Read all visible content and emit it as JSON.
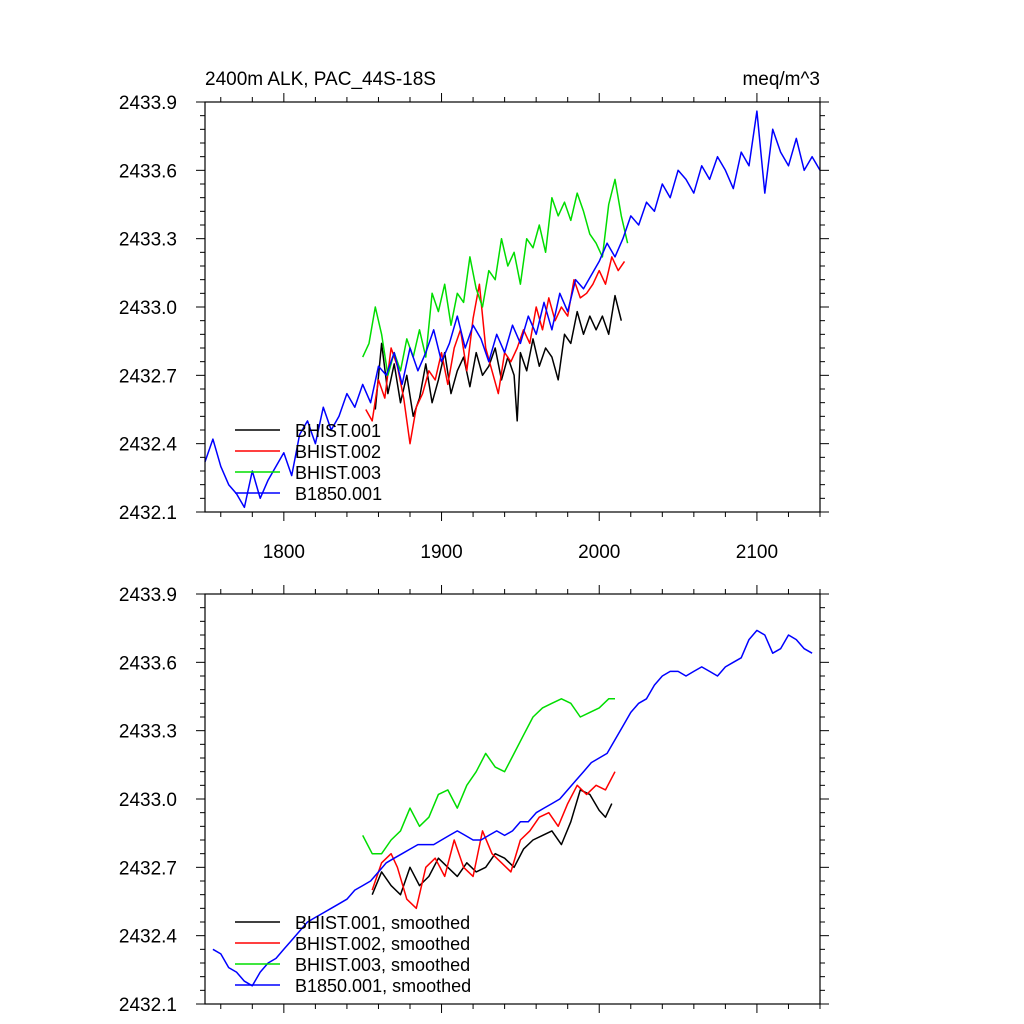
{
  "chart_data": [
    {
      "type": "line",
      "title": "2400m ALK, PAC_44S-18S",
      "units": "meq/m^3",
      "xlim": [
        1750,
        2140
      ],
      "ylim": [
        2432.1,
        2433.9
      ],
      "xticks": [
        1800,
        1900,
        2000,
        2100
      ],
      "xtick_labels": [
        "1800",
        "1900",
        "2000",
        "2100"
      ],
      "yticks": [
        2432.1,
        2432.4,
        2432.7,
        2433.0,
        2433.3,
        2433.6,
        2433.9
      ],
      "ytick_labels": [
        "2432.1",
        "2432.4",
        "2432.7",
        "2433.0",
        "2433.3",
        "2433.6",
        "2433.9"
      ],
      "legend_location": "bottom-left",
      "series": [
        {
          "name": "BHIST.001",
          "color": "#000000",
          "x": [
            1858,
            1862,
            1866,
            1870,
            1874,
            1878,
            1882,
            1886,
            1890,
            1894,
            1898,
            1902,
            1906,
            1910,
            1914,
            1918,
            1922,
            1926,
            1930,
            1934,
            1938,
            1942,
            1946,
            1948,
            1950,
            1954,
            1958,
            1962,
            1966,
            1970,
            1974,
            1978,
            1982,
            1986,
            1990,
            1994,
            1998,
            2002,
            2006,
            2010,
            2014
          ],
          "values": [
            2432.55,
            2432.84,
            2432.62,
            2432.75,
            2432.58,
            2432.7,
            2432.52,
            2432.6,
            2432.75,
            2432.58,
            2432.68,
            2432.8,
            2432.62,
            2432.72,
            2432.78,
            2432.65,
            2432.8,
            2432.7,
            2432.74,
            2432.82,
            2432.68,
            2432.78,
            2432.7,
            2432.5,
            2432.8,
            2432.72,
            2432.86,
            2432.74,
            2432.82,
            2432.78,
            2432.68,
            2432.88,
            2432.84,
            2432.98,
            2432.88,
            2432.96,
            2432.9,
            2432.96,
            2432.88,
            2433.05,
            2432.94
          ]
        },
        {
          "name": "BHIST.002",
          "color": "#ff0000",
          "x": [
            1852,
            1856,
            1860,
            1864,
            1868,
            1872,
            1876,
            1880,
            1884,
            1888,
            1892,
            1896,
            1900,
            1904,
            1908,
            1912,
            1916,
            1920,
            1924,
            1928,
            1932,
            1936,
            1940,
            1944,
            1948,
            1952,
            1956,
            1960,
            1964,
            1968,
            1972,
            1976,
            1980,
            1984,
            1988,
            1992,
            1996,
            2000,
            2004,
            2008,
            2012,
            2016
          ],
          "values": [
            2432.55,
            2432.5,
            2432.68,
            2432.6,
            2432.82,
            2432.74,
            2432.6,
            2432.4,
            2432.56,
            2432.62,
            2432.72,
            2432.68,
            2432.8,
            2432.66,
            2432.82,
            2432.9,
            2432.72,
            2432.95,
            2433.1,
            2432.82,
            2432.72,
            2432.62,
            2432.8,
            2432.76,
            2432.82,
            2432.9,
            2432.84,
            2433.0,
            2432.9,
            2433.04,
            2432.94,
            2433.0,
            2432.96,
            2433.12,
            2433.04,
            2433.06,
            2433.1,
            2433.16,
            2433.1,
            2433.22,
            2433.16,
            2433.2
          ]
        },
        {
          "name": "BHIST.003",
          "color": "#00dd00",
          "x": [
            1850,
            1854,
            1858,
            1862,
            1866,
            1870,
            1874,
            1878,
            1882,
            1886,
            1890,
            1894,
            1898,
            1902,
            1906,
            1910,
            1914,
            1918,
            1922,
            1926,
            1930,
            1934,
            1938,
            1942,
            1946,
            1950,
            1954,
            1958,
            1962,
            1966,
            1970,
            1974,
            1978,
            1982,
            1986,
            1990,
            1994,
            1998,
            2002,
            2006,
            2010,
            2014,
            2018
          ],
          "values": [
            2432.78,
            2432.84,
            2433.0,
            2432.88,
            2432.7,
            2432.8,
            2432.72,
            2432.86,
            2432.78,
            2432.9,
            2432.78,
            2433.06,
            2432.98,
            2433.1,
            2432.92,
            2433.06,
            2433.02,
            2433.22,
            2433.08,
            2433.0,
            2433.16,
            2433.12,
            2433.3,
            2433.18,
            2433.24,
            2433.1,
            2433.3,
            2433.26,
            2433.36,
            2433.24,
            2433.48,
            2433.4,
            2433.46,
            2433.38,
            2433.5,
            2433.42,
            2433.32,
            2433.28,
            2433.22,
            2433.45,
            2433.56,
            2433.4,
            2433.28
          ]
        },
        {
          "name": "B1850.001",
          "color": "#0000ff",
          "x": [
            1750,
            1755,
            1760,
            1765,
            1770,
            1775,
            1780,
            1785,
            1790,
            1795,
            1800,
            1805,
            1810,
            1815,
            1820,
            1825,
            1830,
            1835,
            1840,
            1845,
            1850,
            1855,
            1860,
            1865,
            1870,
            1875,
            1880,
            1885,
            1890,
            1895,
            1900,
            1905,
            1910,
            1915,
            1920,
            1925,
            1930,
            1935,
            1940,
            1945,
            1950,
            1955,
            1960,
            1965,
            1970,
            1975,
            1980,
            1985,
            1990,
            1995,
            2000,
            2005,
            2010,
            2015,
            2020,
            2025,
            2030,
            2035,
            2040,
            2045,
            2050,
            2055,
            2060,
            2065,
            2070,
            2075,
            2080,
            2085,
            2090,
            2095,
            2100,
            2105,
            2110,
            2115,
            2120,
            2125,
            2130,
            2135,
            2140
          ],
          "values": [
            2432.32,
            2432.42,
            2432.3,
            2432.22,
            2432.18,
            2432.12,
            2432.28,
            2432.16,
            2432.24,
            2432.3,
            2432.36,
            2432.26,
            2432.44,
            2432.5,
            2432.4,
            2432.56,
            2432.46,
            2432.52,
            2432.62,
            2432.56,
            2432.66,
            2432.58,
            2432.74,
            2432.7,
            2432.8,
            2432.66,
            2432.82,
            2432.72,
            2432.8,
            2432.9,
            2432.76,
            2432.84,
            2432.96,
            2432.82,
            2432.92,
            2432.86,
            2432.76,
            2432.88,
            2432.8,
            2432.92,
            2432.84,
            2432.96,
            2432.88,
            2433.02,
            2432.9,
            2433.06,
            2432.98,
            2433.12,
            2433.08,
            2433.14,
            2433.2,
            2433.28,
            2433.22,
            2433.3,
            2433.4,
            2433.36,
            2433.46,
            2433.42,
            2433.54,
            2433.48,
            2433.6,
            2433.56,
            2433.5,
            2433.62,
            2433.56,
            2433.66,
            2433.6,
            2433.52,
            2433.68,
            2433.62,
            2433.86,
            2433.5,
            2433.78,
            2433.68,
            2433.62,
            2433.74,
            2433.6,
            2433.66,
            2433.6
          ]
        }
      ]
    },
    {
      "type": "line",
      "title": "",
      "xlim": [
        1750,
        2140
      ],
      "ylim": [
        2432.1,
        2433.9
      ],
      "xticks": [
        1800,
        1900,
        2000,
        2100
      ],
      "xtick_labels": [],
      "yticks": [
        2432.1,
        2432.4,
        2432.7,
        2433.0,
        2433.3,
        2433.6,
        2433.9
      ],
      "ytick_labels": [
        "2432.1",
        "2432.4",
        "2432.7",
        "2433.0",
        "2433.3",
        "2433.6",
        "2433.9"
      ],
      "legend_location": "bottom-left",
      "series": [
        {
          "name": "BHIST.001, smoothed",
          "color": "#000000",
          "x": [
            1856,
            1862,
            1868,
            1874,
            1880,
            1886,
            1892,
            1898,
            1904,
            1910,
            1916,
            1922,
            1928,
            1934,
            1940,
            1946,
            1952,
            1958,
            1964,
            1970,
            1976,
            1982,
            1988,
            1994,
            2000,
            2004,
            2008
          ],
          "values": [
            2432.58,
            2432.68,
            2432.62,
            2432.58,
            2432.7,
            2432.62,
            2432.66,
            2432.74,
            2432.7,
            2432.66,
            2432.72,
            2432.68,
            2432.7,
            2432.76,
            2432.74,
            2432.7,
            2432.78,
            2432.82,
            2432.84,
            2432.86,
            2432.8,
            2432.9,
            2433.04,
            2433.02,
            2432.95,
            2432.92,
            2432.98
          ]
        },
        {
          "name": "BHIST.002, smoothed",
          "color": "#ff0000",
          "x": [
            1856,
            1862,
            1868,
            1872,
            1878,
            1884,
            1890,
            1896,
            1902,
            1908,
            1914,
            1920,
            1926,
            1932,
            1938,
            1944,
            1950,
            1956,
            1962,
            1968,
            1974,
            1980,
            1986,
            1992,
            1998,
            2004,
            2010
          ],
          "values": [
            2432.6,
            2432.72,
            2432.76,
            2432.7,
            2432.56,
            2432.52,
            2432.7,
            2432.74,
            2432.66,
            2432.82,
            2432.7,
            2432.66,
            2432.86,
            2432.76,
            2432.72,
            2432.68,
            2432.82,
            2432.86,
            2432.92,
            2432.94,
            2432.88,
            2432.98,
            2433.06,
            2433.02,
            2433.06,
            2433.04,
            2433.12
          ]
        },
        {
          "name": "BHIST.003, smoothed",
          "color": "#00dd00",
          "x": [
            1850,
            1856,
            1862,
            1868,
            1874,
            1880,
            1886,
            1892,
            1898,
            1904,
            1910,
            1916,
            1922,
            1928,
            1934,
            1940,
            1946,
            1952,
            1958,
            1964,
            1970,
            1976,
            1982,
            1988,
            1994,
            2000,
            2006,
            2010
          ],
          "values": [
            2432.84,
            2432.76,
            2432.76,
            2432.82,
            2432.86,
            2432.96,
            2432.88,
            2432.92,
            2433.02,
            2433.04,
            2432.96,
            2433.06,
            2433.12,
            2433.2,
            2433.14,
            2433.12,
            2433.2,
            2433.28,
            2433.36,
            2433.4,
            2433.42,
            2433.44,
            2433.42,
            2433.36,
            2433.38,
            2433.4,
            2433.44,
            2433.44
          ]
        },
        {
          "name": "B1850.001, smoothed",
          "color": "#0000ff",
          "x": [
            1755,
            1760,
            1765,
            1770,
            1775,
            1780,
            1785,
            1790,
            1795,
            1800,
            1805,
            1810,
            1815,
            1820,
            1825,
            1830,
            1835,
            1840,
            1845,
            1850,
            1855,
            1860,
            1865,
            1870,
            1875,
            1880,
            1885,
            1890,
            1895,
            1900,
            1905,
            1910,
            1915,
            1920,
            1925,
            1930,
            1935,
            1940,
            1945,
            1950,
            1955,
            1960,
            1965,
            1970,
            1975,
            1980,
            1985,
            1990,
            1995,
            2000,
            2005,
            2010,
            2015,
            2020,
            2025,
            2030,
            2035,
            2040,
            2045,
            2050,
            2055,
            2060,
            2065,
            2070,
            2075,
            2080,
            2085,
            2090,
            2095,
            2100,
            2105,
            2110,
            2115,
            2120,
            2125,
            2130,
            2135
          ],
          "values": [
            2432.34,
            2432.32,
            2432.26,
            2432.24,
            2432.2,
            2432.18,
            2432.24,
            2432.28,
            2432.3,
            2432.34,
            2432.38,
            2432.42,
            2432.46,
            2432.48,
            2432.5,
            2432.52,
            2432.54,
            2432.56,
            2432.6,
            2432.62,
            2432.64,
            2432.68,
            2432.72,
            2432.74,
            2432.76,
            2432.78,
            2432.8,
            2432.8,
            2432.8,
            2432.82,
            2432.84,
            2432.86,
            2432.84,
            2432.82,
            2432.82,
            2432.84,
            2432.86,
            2432.84,
            2432.86,
            2432.9,
            2432.9,
            2432.94,
            2432.96,
            2432.98,
            2433.0,
            2433.04,
            2433.08,
            2433.12,
            2433.16,
            2433.18,
            2433.2,
            2433.26,
            2433.32,
            2433.38,
            2433.42,
            2433.44,
            2433.5,
            2433.54,
            2433.56,
            2433.56,
            2433.54,
            2433.56,
            2433.58,
            2433.56,
            2433.54,
            2433.58,
            2433.6,
            2433.62,
            2433.7,
            2433.74,
            2433.72,
            2433.64,
            2433.66,
            2433.72,
            2433.7,
            2433.66,
            2433.64
          ]
        }
      ]
    }
  ]
}
